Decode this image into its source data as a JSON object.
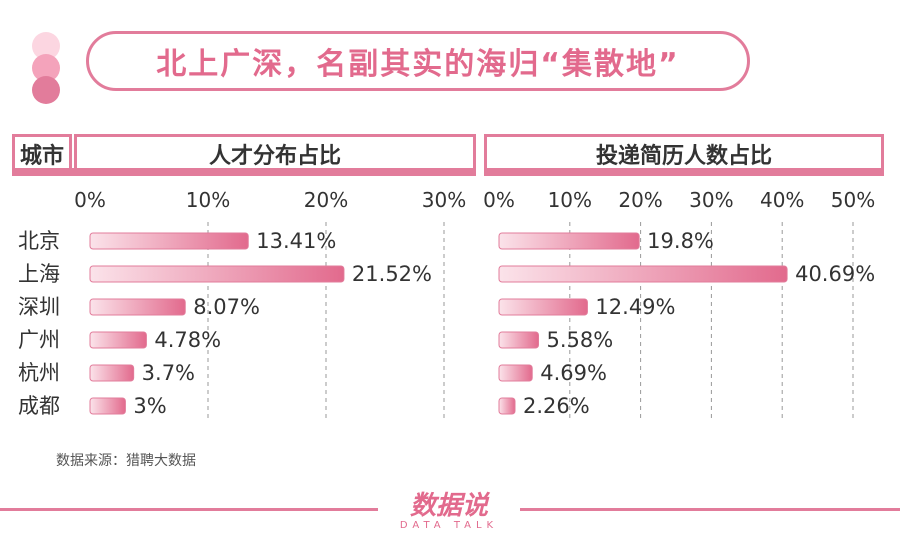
{
  "title": "北上广深，名副其实的海归“集散地”",
  "header": {
    "city_label": "城市",
    "left_title": "人才分布占比",
    "right_title": "投递简历人数占比"
  },
  "source": "数据来源：猎聘大数据",
  "logo": {
    "main": "数据说",
    "sub": "DATA TALK"
  },
  "colors": {
    "accent": "#e27c9b",
    "title_text": "#e26a8d",
    "bar_light": "#fbe3ea",
    "bar_dark": "#e26a8d",
    "dot_1": "#fcd6e1",
    "dot_2": "#f4a3bb",
    "dot_3": "#e27c9b"
  },
  "chart_data": [
    {
      "type": "bar",
      "orientation": "horizontal",
      "title": "人才分布占比",
      "categories": [
        "北京",
        "上海",
        "深圳",
        "广州",
        "杭州",
        "成都"
      ],
      "values": [
        13.41,
        21.52,
        8.07,
        4.78,
        3.7,
        3
      ],
      "value_labels": [
        "13.41%",
        "21.52%",
        "8.07%",
        "4.78%",
        "3.7%",
        "3%"
      ],
      "xlim": [
        0,
        30
      ],
      "ticks": [
        0,
        10,
        20,
        30
      ],
      "tick_labels": [
        "0%",
        "10%",
        "20%",
        "30%"
      ],
      "grid": true
    },
    {
      "type": "bar",
      "orientation": "horizontal",
      "title": "投递简历人数占比",
      "categories": [
        "北京",
        "上海",
        "深圳",
        "广州",
        "杭州",
        "成都"
      ],
      "values": [
        19.8,
        40.69,
        12.49,
        5.58,
        4.69,
        2.26
      ],
      "value_labels": [
        "19.8%",
        "40.69%",
        "12.49%",
        "5.58%",
        "4.69%",
        "2.26%"
      ],
      "xlim": [
        0,
        50
      ],
      "ticks": [
        0,
        10,
        20,
        30,
        40,
        50
      ],
      "tick_labels": [
        "0%",
        "10%",
        "20%",
        "30%",
        "40%",
        "50%"
      ],
      "grid": true
    }
  ]
}
